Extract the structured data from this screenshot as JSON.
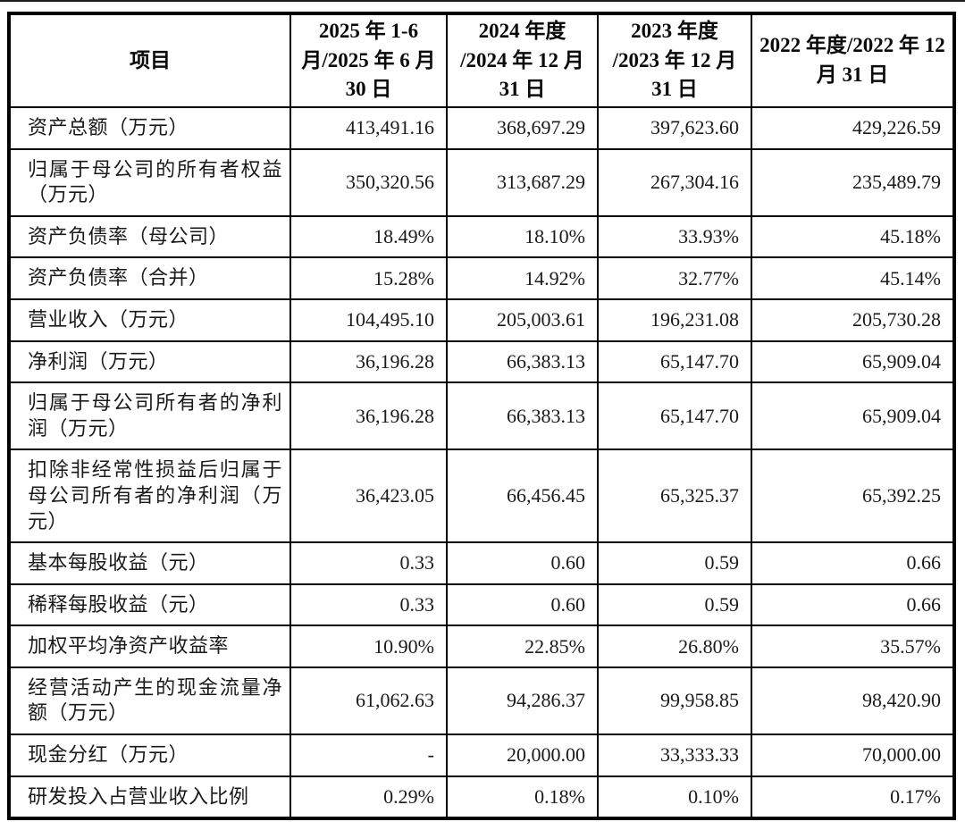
{
  "page": {
    "background_color": "#ffffff",
    "text_color": "#1a1a1a",
    "border_color": "#000000"
  },
  "table": {
    "columns": [
      {
        "label": "项目"
      },
      {
        "label": "2025 年 1-6 月/2025 年 6 月 30 日"
      },
      {
        "label": "2024 年度 /2024 年 12 月 31 日"
      },
      {
        "label": "2023 年度 /2023 年 12 月 31 日"
      },
      {
        "label": "2022 年度/2022 年 12 月 31 日"
      }
    ],
    "rows": [
      {
        "label": "资产总额（万元）",
        "values": [
          "413,491.16",
          "368,697.29",
          "397,623.60",
          "429,226.59"
        ]
      },
      {
        "label": "归属于母公司的所有者权益（万元）",
        "values": [
          "350,320.56",
          "313,687.29",
          "267,304.16",
          "235,489.79"
        ]
      },
      {
        "label": "资产负债率（母公司）",
        "values": [
          "18.49%",
          "18.10%",
          "33.93%",
          "45.18%"
        ]
      },
      {
        "label": "资产负债率（合并）",
        "values": [
          "15.28%",
          "14.92%",
          "32.77%",
          "45.14%"
        ]
      },
      {
        "label": "营业收入（万元）",
        "values": [
          "104,495.10",
          "205,003.61",
          "196,231.08",
          "205,730.28"
        ]
      },
      {
        "label": "净利润（万元）",
        "values": [
          "36,196.28",
          "66,383.13",
          "65,147.70",
          "65,909.04"
        ]
      },
      {
        "label": "归属于母公司所有者的净利润（万元）",
        "values": [
          "36,196.28",
          "66,383.13",
          "65,147.70",
          "65,909.04"
        ]
      },
      {
        "label": "扣除非经常性损益后归属于母公司所有者的净利润（万元）",
        "values": [
          "36,423.05",
          "66,456.45",
          "65,325.37",
          "65,392.25"
        ]
      },
      {
        "label": "基本每股收益（元）",
        "values": [
          "0.33",
          "0.60",
          "0.59",
          "0.66"
        ]
      },
      {
        "label": "稀释每股收益（元）",
        "values": [
          "0.33",
          "0.60",
          "0.59",
          "0.66"
        ]
      },
      {
        "label": "加权平均净资产收益率",
        "values": [
          "10.90%",
          "22.85%",
          "26.80%",
          "35.57%"
        ]
      },
      {
        "label": "经营活动产生的现金流量净额（万元）",
        "values": [
          "61,062.63",
          "94,286.37",
          "99,958.85",
          "98,420.90"
        ]
      },
      {
        "label": "现金分红（万元）",
        "values": [
          "-",
          "20,000.00",
          "33,333.33",
          "70,000.00"
        ]
      },
      {
        "label": "研发投入占营业收入比例",
        "values": [
          "0.29%",
          "0.18%",
          "0.10%",
          "0.17%"
        ]
      }
    ]
  }
}
